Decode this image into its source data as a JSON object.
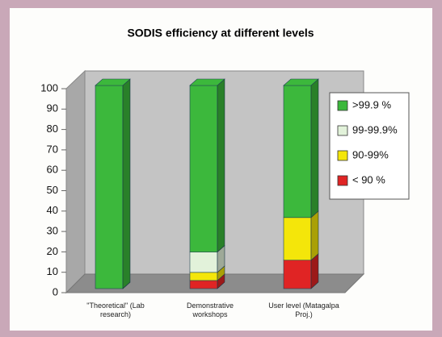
{
  "chart_data": {
    "type": "stacked-bar-3d",
    "title": "SODIS efficiency at different levels",
    "categories": [
      "\"Theoretical\" (Lab research)",
      "Demonstrative workshops",
      "User level (Matagalpa Proj.)"
    ],
    "series": [
      {
        "name": ">99.9 %",
        "color": "#3cb83c",
        "values": [
          100,
          82,
          65
        ]
      },
      {
        "name": "99-99.9%",
        "color": "#e2f2da",
        "values": [
          0,
          10,
          0
        ]
      },
      {
        "name": "90-99%",
        "color": "#f4e60a",
        "values": [
          0,
          4,
          21
        ]
      },
      {
        "name": "< 90 %",
        "color": "#e02424",
        "values": [
          0,
          4,
          14
        ]
      }
    ],
    "ylim": [
      0,
      100
    ],
    "yticks": [
      0,
      10,
      20,
      30,
      40,
      50,
      60,
      70,
      80,
      90,
      100
    ],
    "legend": "right"
  }
}
